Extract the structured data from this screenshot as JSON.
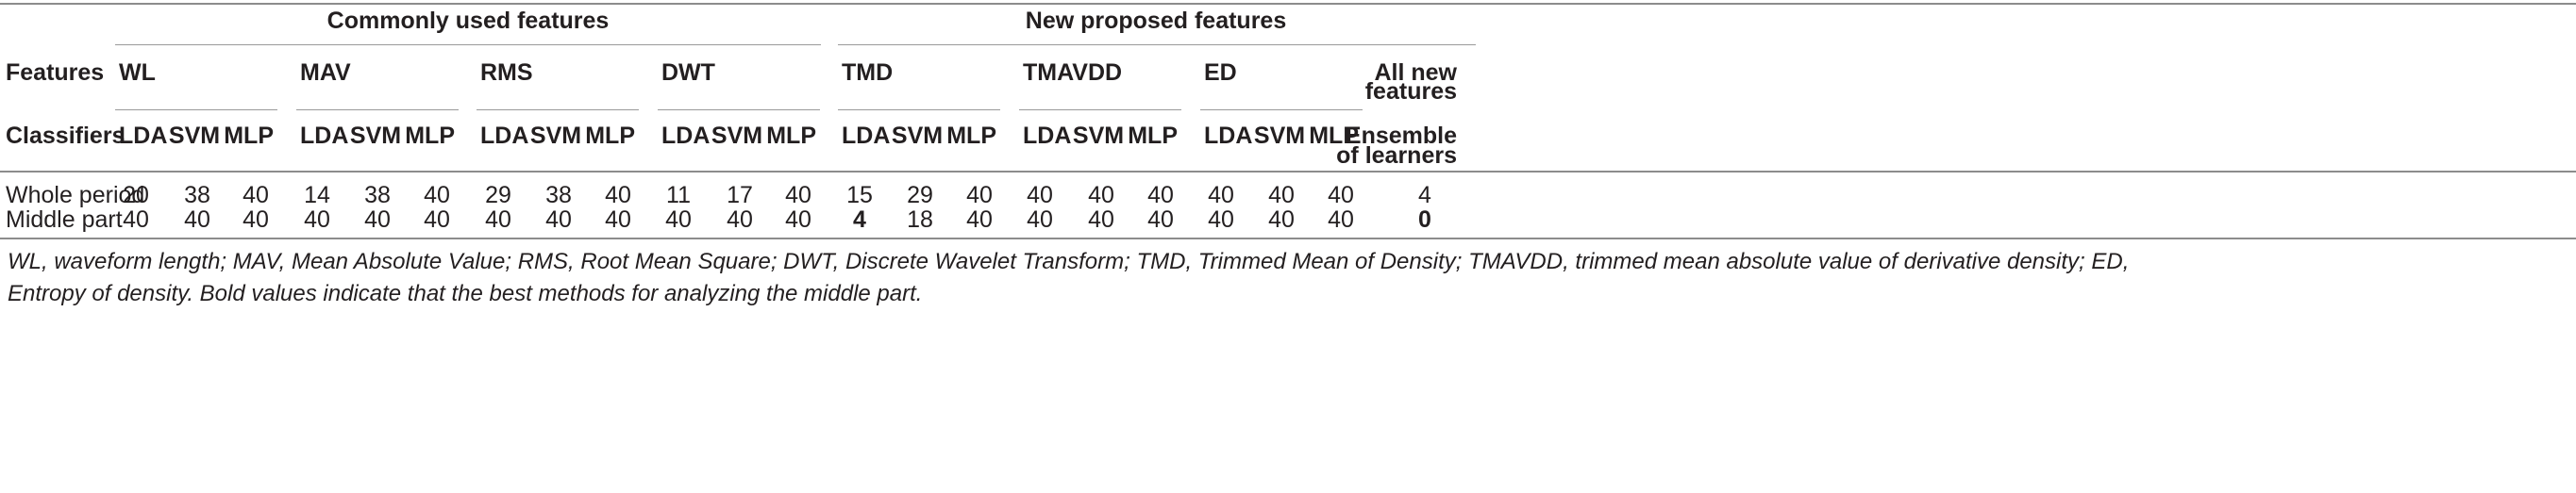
{
  "header": {
    "group_common": "Commonly used features",
    "group_new": "New proposed features",
    "features_label": "Features",
    "classifiers_label": "Classifiers",
    "feature_names": [
      "WL",
      "MAV",
      "RMS",
      "DWT",
      "TMD",
      "TMAVDD",
      "ED"
    ],
    "all_new_line1": "All new",
    "all_new_line2": "features",
    "classifiers": [
      "LDA",
      "SVM",
      "MLP",
      "LDA",
      "SVM",
      "MLP",
      "LDA",
      "SVM",
      "MLP",
      "LDA",
      "SVM",
      "MLP",
      "LDA",
      "SVM",
      "MLP",
      "LDA",
      "SVM",
      "MLP",
      "LDA",
      "SVM",
      "MLP"
    ],
    "ensemble_line1": "Ensemble",
    "ensemble_line2": "of learners"
  },
  "rows": [
    {
      "label": "Whole period",
      "values": [
        "20",
        "38",
        "40",
        "14",
        "38",
        "40",
        "29",
        "38",
        "40",
        "11",
        "17",
        "40",
        "15",
        "29",
        "40",
        "40",
        "40",
        "40",
        "40",
        "40",
        "40",
        "4"
      ]
    },
    {
      "label": "Middle part",
      "values": [
        "40",
        "40",
        "40",
        "40",
        "40",
        "40",
        "40",
        "40",
        "40",
        "40",
        "40",
        "40",
        "4",
        "18",
        "40",
        "40",
        "40",
        "40",
        "40",
        "40",
        "40",
        "0"
      ]
    }
  ],
  "footnote": {
    "line1": "WL, waveform length; MAV, Mean Absolute Value; RMS, Root Mean Square; DWT, Discrete Wavelet Transform; TMD, Trimmed Mean of Density; TMAVDD, trimmed mean absolute value of derivative density; ED,",
    "line2": "Entropy of density. Bold values indicate that the best methods for analyzing the middle part."
  }
}
